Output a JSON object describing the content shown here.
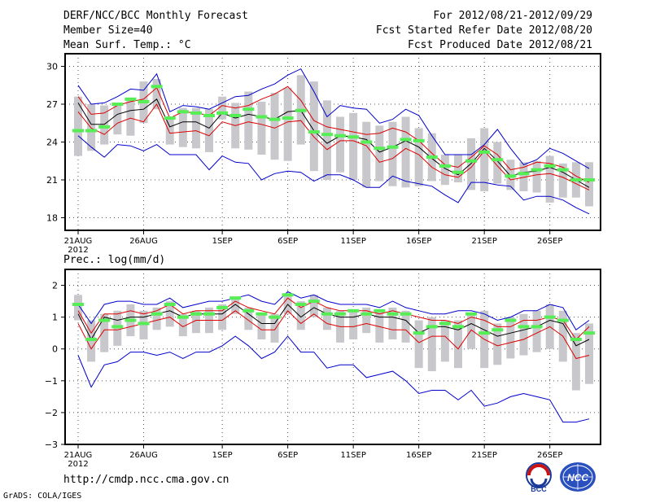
{
  "header": {
    "title": "DERF/NCC/BCC Monthly Forecast",
    "member_size": "Member Size=40",
    "variable": "Mean Surf. Temp.: °C",
    "period": "For 2012/08/21-2012/09/29",
    "started": "Fcst Started Refer Date 2012/08/20",
    "produced": "Fcst Produced Date 2012/08/21"
  },
  "footer": {
    "url": "http://cmdp.ncc.cma.gov.cn",
    "credit": "GrADS: COLA/IGES",
    "logo_bcc": "BCC",
    "logo_ncc": "NCC"
  },
  "colors": {
    "mean": "#000000",
    "spread": "#dd0000",
    "extreme": "#0000cc",
    "box": "#c8c8cc",
    "ensemble": "#55ee55"
  },
  "chart_data": [
    {
      "type": "line",
      "title": "Mean Surf. Temp.: °C",
      "days": 40,
      "xticks": [
        {
          "day": 1,
          "label": "21AUG"
        },
        {
          "day": 6,
          "label": "26AUG"
        },
        {
          "day": 12,
          "label": "1SEP"
        },
        {
          "day": 17,
          "label": "6SEP"
        },
        {
          "day": 22,
          "label": "11SEP"
        },
        {
          "day": 27,
          "label": "16SEP"
        },
        {
          "day": 32,
          "label": "21SEP"
        },
        {
          "day": 37,
          "label": "26SEP"
        }
      ],
      "year_label": "2012",
      "ylim": [
        17,
        31
      ],
      "yticks": [
        18,
        21,
        24,
        27,
        30
      ],
      "series": [
        {
          "name": "max",
          "values": [
            28.5,
            27.0,
            27.1,
            27.6,
            28.2,
            28.1,
            29.4,
            26.4,
            26.9,
            26.8,
            26.6,
            27.1,
            27.6,
            27.7,
            28.2,
            28.6,
            29.3,
            29.8,
            28.0,
            26.0,
            26.9,
            26.7,
            26.6,
            25.5,
            25.8,
            26.6,
            26.1,
            24.5,
            23.0,
            23.0,
            23.0,
            23.8,
            25.0,
            23.5,
            22.2,
            22.6,
            23.5,
            23.1,
            22.5,
            21.9
          ]
        },
        {
          "name": "upper",
          "values": [
            27.6,
            26.2,
            26.3,
            26.9,
            27.2,
            27.4,
            28.3,
            25.9,
            26.4,
            26.3,
            26.1,
            26.9,
            26.7,
            26.9,
            27.4,
            27.8,
            28.4,
            27.3,
            25.7,
            25.2,
            25.0,
            24.8,
            24.6,
            24.7,
            25.1,
            24.8,
            24.1,
            23.1,
            22.2,
            22.0,
            22.8,
            23.7,
            23.0,
            21.8,
            22.0,
            22.4,
            22.3,
            22.0,
            21.3,
            20.8
          ]
        },
        {
          "name": "mean",
          "values": [
            27.1,
            25.4,
            25.4,
            26.2,
            26.5,
            26.6,
            27.4,
            25.2,
            25.6,
            25.6,
            25.1,
            26.3,
            25.9,
            26.2,
            26.0,
            25.8,
            26.4,
            26.5,
            24.9,
            23.9,
            24.5,
            24.4,
            24.2,
            23.2,
            23.6,
            24.1,
            23.6,
            22.7,
            21.9,
            21.4,
            22.3,
            23.5,
            22.5,
            21.3,
            21.6,
            21.7,
            22.0,
            21.6,
            21.0,
            20.4
          ]
        },
        {
          "name": "lower",
          "values": [
            26.4,
            25.1,
            24.6,
            25.5,
            25.9,
            25.6,
            27.0,
            24.7,
            24.8,
            24.9,
            24.5,
            25.6,
            25.3,
            25.6,
            25.4,
            25.1,
            25.6,
            25.7,
            24.4,
            23.4,
            24.1,
            24.1,
            23.7,
            22.4,
            22.7,
            23.5,
            23.0,
            22.0,
            21.4,
            21.2,
            22.0,
            23.3,
            22.1,
            21.0,
            21.2,
            21.4,
            21.5,
            21.2,
            20.7,
            20.2
          ]
        },
        {
          "name": "min",
          "values": [
            24.5,
            23.6,
            22.8,
            23.8,
            23.7,
            23.3,
            23.8,
            23.0,
            23.0,
            23.0,
            21.8,
            22.9,
            22.4,
            22.3,
            21.0,
            21.5,
            21.7,
            21.6,
            20.9,
            21.4,
            21.4,
            21.0,
            20.4,
            20.4,
            21.3,
            20.9,
            20.7,
            20.5,
            19.8,
            19.2,
            20.8,
            20.8,
            20.6,
            20.5,
            19.4,
            19.7,
            19.7,
            19.4,
            18.8,
            18.3
          ]
        }
      ],
      "boxes": [
        [
          22.9,
          27.6
        ],
        [
          23.3,
          27.0
        ],
        [
          23.8,
          26.9
        ],
        [
          24.6,
          27.0
        ],
        [
          24.5,
          27.3
        ],
        [
          25.5,
          28.8
        ],
        [
          26.6,
          29.0
        ],
        [
          23.8,
          26.0
        ],
        [
          23.6,
          26.7
        ],
        [
          23.5,
          26.7
        ],
        [
          23.2,
          26.6
        ],
        [
          25.8,
          27.6
        ],
        [
          23.5,
          27.1
        ],
        [
          23.4,
          28.0
        ],
        [
          23.0,
          27.2
        ],
        [
          22.6,
          27.9
        ],
        [
          22.5,
          28.3
        ],
        [
          23.8,
          29.3
        ],
        [
          21.7,
          28.8
        ],
        [
          21.0,
          27.3
        ],
        [
          21.6,
          26.0
        ],
        [
          21.0,
          26.3
        ],
        [
          20.4,
          25.6
        ],
        [
          20.9,
          25.3
        ],
        [
          20.5,
          25.6
        ],
        [
          20.4,
          26.0
        ],
        [
          20.5,
          25.1
        ],
        [
          20.9,
          24.7
        ],
        [
          20.6,
          23.0
        ],
        [
          20.8,
          23.0
        ],
        [
          20.2,
          24.3
        ],
        [
          20.1,
          25.1
        ],
        [
          20.7,
          24.0
        ],
        [
          20.2,
          22.6
        ],
        [
          20.1,
          22.4
        ],
        [
          20.0,
          22.5
        ],
        [
          19.2,
          22.9
        ],
        [
          19.6,
          22.3
        ],
        [
          19.6,
          22.4
        ],
        [
          18.9,
          22.4
        ]
      ],
      "ensemble_marks": [
        24.9,
        24.9,
        25.2,
        27.0,
        27.4,
        27.2,
        28.4,
        25.9,
        26.4,
        26.3,
        26.1,
        26.3,
        26.1,
        26.6,
        26.0,
        25.8,
        25.9,
        26.5,
        24.8,
        24.6,
        24.5,
        24.4,
        24.0,
        23.5,
        23.6,
        24.2,
        24.1,
        22.8,
        22.1,
        21.6,
        22.5,
        23.2,
        22.6,
        21.3,
        21.5,
        21.8,
        22.1,
        21.8,
        21.0,
        21.0
      ]
    },
    {
      "type": "line",
      "title": "Prec.: log(mm/d)",
      "days": 40,
      "xticks": [
        {
          "day": 1,
          "label": "21AUG"
        },
        {
          "day": 6,
          "label": "26AUG"
        },
        {
          "day": 12,
          "label": "1SEP"
        },
        {
          "day": 17,
          "label": "6SEP"
        },
        {
          "day": 22,
          "label": "11SEP"
        },
        {
          "day": 27,
          "label": "16SEP"
        },
        {
          "day": 32,
          "label": "21SEP"
        },
        {
          "day": 37,
          "label": "26SEP"
        }
      ],
      "year_label": "2012",
      "ylim": [
        -3,
        2.5
      ],
      "yticks": [
        -3,
        -2,
        -1,
        0,
        1,
        2
      ],
      "series": [
        {
          "name": "max",
          "values": [
            1.4,
            0.8,
            1.4,
            1.5,
            1.5,
            1.4,
            1.4,
            1.6,
            1.3,
            1.4,
            1.5,
            1.5,
            1.6,
            1.7,
            1.5,
            1.4,
            1.8,
            1.6,
            1.7,
            1.5,
            1.4,
            1.4,
            1.4,
            1.3,
            1.5,
            1.3,
            1.2,
            1.1,
            1.1,
            1.2,
            1.2,
            1.1,
            0.9,
            1.0,
            1.2,
            1.2,
            1.4,
            1.3,
            0.6,
            0.9
          ]
        },
        {
          "name": "upper",
          "values": [
            1.2,
            0.5,
            1.1,
            1.1,
            1.2,
            1.1,
            1.2,
            1.4,
            1.1,
            1.2,
            1.2,
            1.2,
            1.5,
            1.3,
            1.2,
            1.1,
            1.6,
            1.3,
            1.5,
            1.3,
            1.2,
            1.2,
            1.2,
            1.1,
            1.2,
            1.1,
            1.0,
            0.9,
            0.9,
            0.8,
            1.0,
            0.9,
            0.7,
            0.7,
            0.9,
            0.9,
            1.0,
            0.9,
            0.3,
            0.7
          ]
        },
        {
          "name": "mean",
          "values": [
            1.1,
            0.3,
            1.0,
            0.9,
            1.0,
            1.0,
            1.1,
            1.2,
            1.0,
            1.1,
            1.1,
            1.1,
            1.4,
            1.1,
            0.8,
            0.8,
            1.4,
            1.0,
            1.3,
            1.1,
            1.0,
            1.0,
            1.1,
            1.0,
            1.0,
            0.9,
            0.5,
            0.7,
            0.7,
            0.6,
            0.8,
            0.6,
            0.4,
            0.5,
            0.6,
            0.7,
            0.9,
            0.8,
            0.1,
            0.3
          ]
        },
        {
          "name": "lower",
          "values": [
            0.8,
            0.0,
            0.6,
            0.6,
            0.7,
            0.8,
            0.9,
            1.0,
            0.7,
            0.9,
            0.9,
            0.9,
            1.2,
            0.9,
            0.6,
            0.6,
            1.2,
            0.8,
            1.1,
            0.8,
            0.7,
            0.7,
            0.8,
            0.7,
            0.6,
            0.6,
            0.2,
            0.4,
            0.4,
            0.0,
            0.6,
            0.3,
            0.1,
            0.2,
            0.3,
            0.5,
            0.7,
            0.4,
            -0.3,
            -0.2
          ]
        },
        {
          "name": "min",
          "values": [
            -0.2,
            -1.2,
            -0.5,
            -0.4,
            -0.1,
            -0.1,
            -0.2,
            -0.1,
            -0.3,
            -0.1,
            -0.1,
            0.1,
            0.4,
            0.1,
            -0.3,
            -0.1,
            0.4,
            -0.1,
            -0.1,
            -0.6,
            -0.5,
            -0.5,
            -0.9,
            -0.8,
            -0.7,
            -1.0,
            -1.4,
            -1.3,
            -1.3,
            -1.6,
            -1.3,
            -1.8,
            -1.7,
            -1.5,
            -1.4,
            -1.5,
            -1.6,
            -2.3,
            -2.3,
            -2.2
          ]
        }
      ],
      "boxes": [
        [
          0.9,
          1.7
        ],
        [
          -0.4,
          0.9
        ],
        [
          -0.1,
          1.1
        ],
        [
          0.1,
          1.2
        ],
        [
          0.4,
          1.4
        ],
        [
          0.3,
          1.2
        ],
        [
          0.6,
          1.3
        ],
        [
          0.7,
          1.5
        ],
        [
          0.4,
          1.1
        ],
        [
          0.5,
          1.2
        ],
        [
          0.5,
          1.3
        ],
        [
          0.6,
          1.4
        ],
        [
          1.1,
          1.6
        ],
        [
          0.6,
          1.3
        ],
        [
          0.3,
          1.1
        ],
        [
          0.2,
          1.1
        ],
        [
          1.1,
          1.7
        ],
        [
          0.6,
          1.5
        ],
        [
          1.0,
          1.7
        ],
        [
          0.6,
          1.3
        ],
        [
          0.2,
          1.2
        ],
        [
          0.3,
          1.2
        ],
        [
          0.5,
          1.3
        ],
        [
          0.2,
          1.2
        ],
        [
          0.3,
          1.3
        ],
        [
          0.2,
          1.2
        ],
        [
          -0.6,
          0.9
        ],
        [
          -0.7,
          1.0
        ],
        [
          -0.4,
          0.9
        ],
        [
          -0.6,
          0.9
        ],
        [
          0.0,
          1.1
        ],
        [
          -0.6,
          1.2
        ],
        [
          -0.5,
          0.8
        ],
        [
          -0.3,
          1.0
        ],
        [
          -0.2,
          1.1
        ],
        [
          -0.1,
          1.2
        ],
        [
          0.0,
          1.4
        ],
        [
          -0.4,
          1.2
        ],
        [
          -1.3,
          0.5
        ],
        [
          -1.1,
          0.8
        ]
      ],
      "ensemble_marks": [
        1.4,
        0.3,
        0.9,
        0.7,
        0.9,
        0.8,
        1.1,
        1.4,
        1.0,
        1.1,
        1.1,
        1.3,
        1.6,
        1.2,
        1.1,
        1.0,
        1.7,
        1.4,
        1.5,
        1.1,
        1.1,
        1.2,
        1.1,
        1.2,
        1.1,
        1.1,
        0.5,
        0.7,
        0.8,
        0.7,
        1.1,
        0.5,
        0.6,
        0.9,
        0.7,
        0.7,
        1.0,
        0.9,
        0.3,
        0.5
      ]
    }
  ]
}
